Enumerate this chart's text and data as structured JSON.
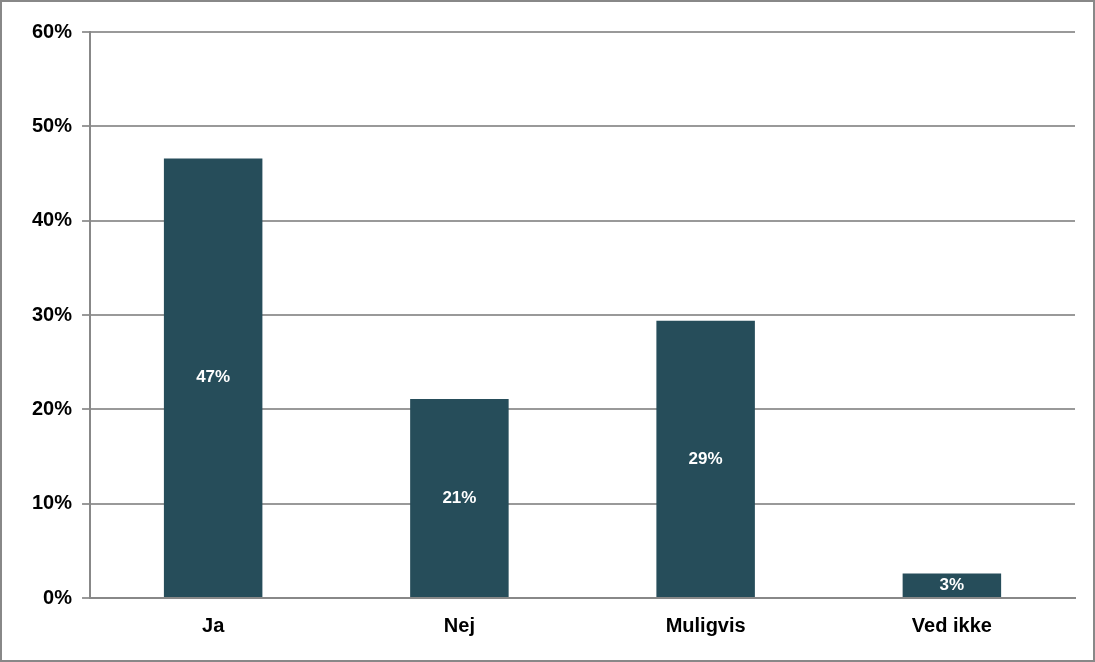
{
  "chart_data": {
    "type": "bar",
    "categories": [
      "Ja",
      "Nej",
      "Muligvis",
      "Ved ikke"
    ],
    "values": [
      46.6,
      21.1,
      29.4,
      2.6
    ],
    "value_labels": [
      "47%",
      "21%",
      "29%",
      "3%"
    ],
    "color": "#264d5a",
    "ylim": [
      0,
      60
    ],
    "yticks": [
      {
        "value": 0,
        "label": "0%"
      },
      {
        "value": 10,
        "label": "10%"
      },
      {
        "value": 20,
        "label": "20%"
      },
      {
        "value": 30,
        "label": "30%"
      },
      {
        "value": 40,
        "label": "40%"
      },
      {
        "value": 50,
        "label": "50%"
      },
      {
        "value": 60,
        "label": "60%"
      }
    ],
    "grid": "y",
    "legend": false
  }
}
